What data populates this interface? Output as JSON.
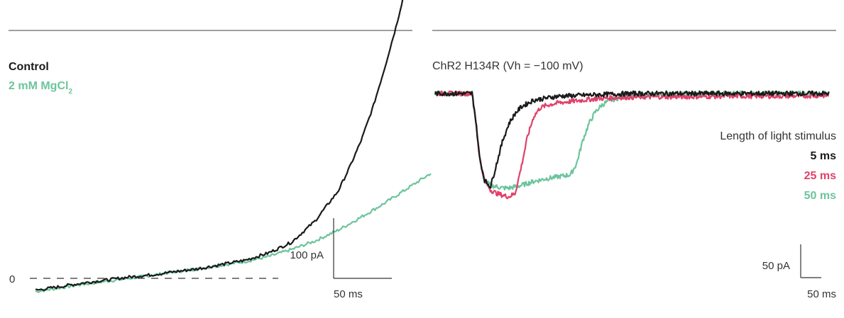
{
  "chart_data": [
    {
      "type": "line",
      "title": "",
      "legend": [
        "Control",
        "2 mM MgCl",
        "2"
      ],
      "baseline_label": "0",
      "scalebar": {
        "y_label": "100 pA",
        "x_label": "50 ms"
      },
      "series": [
        {
          "name": "Control",
          "color": "#1a1a1a",
          "x_ms": [
            0,
            20,
            40,
            60,
            80,
            100,
            120,
            140,
            160,
            180,
            200,
            220,
            240,
            260,
            270,
            280,
            290,
            300,
            310,
            320,
            330,
            340,
            350,
            360
          ],
          "y_pA": [
            -20,
            -14,
            -8,
            -3,
            2,
            6,
            11,
            16,
            23,
            30,
            42,
            60,
            95,
            145,
            185,
            230,
            285,
            350,
            420,
            500,
            580,
            670,
            740,
            800
          ]
        },
        {
          "name": "2 mM MgCl2",
          "color": "#6cc49c",
          "x_ms": [
            0,
            20,
            40,
            60,
            80,
            100,
            120,
            140,
            160,
            180,
            200,
            220,
            240,
            260,
            280,
            300,
            320,
            340
          ],
          "y_pA": [
            -22,
            -16,
            -10,
            -5,
            0,
            5,
            11,
            16,
            22,
            28,
            36,
            48,
            62,
            80,
            102,
            125,
            150,
            175
          ]
        }
      ]
    },
    {
      "type": "line",
      "title": "ChR2 H134R (Vh = −100 mV)",
      "legend_title": "Length of light stimulus",
      "scalebar": {
        "y_label": "50 pA",
        "x_label": "50 ms"
      },
      "series": [
        {
          "name": "5 ms",
          "color": "#1a1a1a",
          "x_ms": [
            0,
            20,
            30,
            33,
            36,
            40,
            45,
            50,
            55,
            60,
            65,
            70,
            80,
            100,
            130,
            160,
            200,
            240,
            280,
            320
          ],
          "y_pA": [
            0,
            0,
            0,
            -40,
            -95,
            -130,
            -140,
            -105,
            -70,
            -45,
            -30,
            -20,
            -10,
            -4,
            -2,
            0,
            0,
            0,
            0,
            0
          ]
        },
        {
          "name": "25 ms",
          "color": "#e0416a",
          "x_ms": [
            0,
            20,
            30,
            33,
            36,
            40,
            45,
            50,
            55,
            60,
            65,
            70,
            75,
            80,
            85,
            90,
            100,
            110,
            120,
            130,
            150,
            180,
            200,
            240,
            280,
            320
          ],
          "y_pA": [
            0,
            0,
            0,
            -40,
            -95,
            -130,
            -145,
            -150,
            -153,
            -155,
            -150,
            -110,
            -65,
            -35,
            -22,
            -18,
            -14,
            -12,
            -10,
            -8,
            -6,
            -5,
            -5,
            -4,
            -4,
            -3
          ]
        },
        {
          "name": "50 ms",
          "color": "#6cc49c",
          "x_ms": [
            0,
            20,
            30,
            33,
            36,
            40,
            45,
            50,
            55,
            60,
            70,
            80,
            90,
            100,
            110,
            115,
            120,
            125,
            130,
            135,
            140,
            150,
            160,
            180,
            200,
            240,
            280,
            320
          ],
          "y_pA": [
            0,
            0,
            0,
            -40,
            -95,
            -130,
            -138,
            -140,
            -142,
            -142,
            -138,
            -132,
            -128,
            -125,
            -122,
            -105,
            -70,
            -45,
            -28,
            -18,
            -12,
            -6,
            -4,
            -2,
            -1,
            0,
            0,
            0
          ]
        }
      ]
    }
  ]
}
